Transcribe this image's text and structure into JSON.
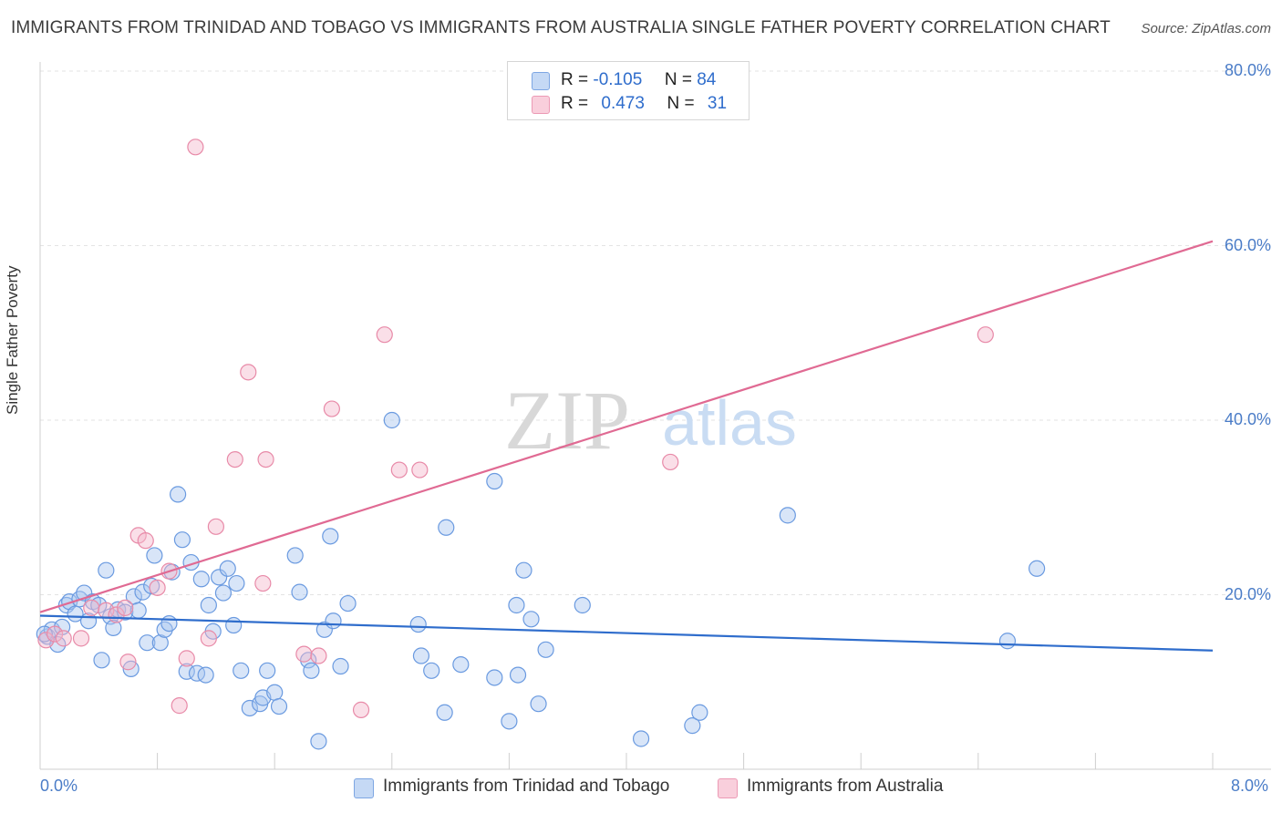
{
  "title": "IMMIGRANTS FROM TRINIDAD AND TOBAGO VS IMMIGRANTS FROM AUSTRALIA SINGLE FATHER POVERTY CORRELATION CHART",
  "source": "Source: ZipAtlas.com",
  "watermark": {
    "zip": "ZIP",
    "atlas": "atlas"
  },
  "legend": {
    "rows": [
      {
        "r_label": "R =",
        "r_value": "-0.105",
        "n_label": "N =",
        "n_value": "84",
        "color": "#a8c6f0"
      },
      {
        "r_label": "R =",
        "r_value": "0.473",
        "n_label": "N =",
        "n_value": "31",
        "color": "#f5b8cb"
      }
    ]
  },
  "chart_data": {
    "type": "scatter",
    "title": "IMMIGRANTS FROM TRINIDAD AND TOBAGO VS IMMIGRANTS FROM AUSTRALIA SINGLE FATHER POVERTY CORRELATION CHART",
    "xlabel": "",
    "ylabel": "Single Father Poverty",
    "xlim": [
      0,
      8
    ],
    "ylim": [
      0,
      80
    ],
    "x_tick_labels": [
      "0.0%",
      "8.0%"
    ],
    "y_tick_labels": [
      "20.0%",
      "40.0%",
      "60.0%",
      "80.0%"
    ],
    "y_ticks": [
      20,
      40,
      60,
      80
    ],
    "grid": true,
    "legend_position": "top-center",
    "series": [
      {
        "name": "Immigrants from Trinidad and Tobago",
        "color": "#a8c6f0",
        "stroke": "#6a9ae0",
        "trend": {
          "x0": 0,
          "y0": 17.6,
          "x1": 8,
          "y1": 13.6,
          "color": "#2f6dcc"
        },
        "points": [
          [
            0.05,
            15.2
          ],
          [
            0.08,
            16.0
          ],
          [
            0.12,
            14.3
          ],
          [
            0.15,
            16.3
          ],
          [
            0.18,
            18.8
          ],
          [
            0.2,
            19.2
          ],
          [
            0.24,
            17.8
          ],
          [
            0.27,
            19.5
          ],
          [
            0.3,
            20.2
          ],
          [
            0.33,
            17.0
          ],
          [
            0.36,
            19.2
          ],
          [
            0.4,
            18.8
          ],
          [
            0.42,
            12.5
          ],
          [
            0.45,
            22.8
          ],
          [
            0.48,
            17.5
          ],
          [
            0.5,
            16.2
          ],
          [
            0.53,
            18.3
          ],
          [
            0.58,
            18.0
          ],
          [
            0.62,
            11.5
          ],
          [
            0.64,
            19.8
          ],
          [
            0.67,
            18.2
          ],
          [
            0.7,
            20.3
          ],
          [
            0.73,
            14.5
          ],
          [
            0.76,
            21.0
          ],
          [
            0.78,
            24.5
          ],
          [
            0.82,
            14.5
          ],
          [
            0.85,
            16.0
          ],
          [
            0.88,
            16.7
          ],
          [
            0.9,
            22.6
          ],
          [
            0.94,
            31.5
          ],
          [
            0.97,
            26.3
          ],
          [
            1.0,
            11.2
          ],
          [
            1.03,
            23.7
          ],
          [
            1.07,
            11.0
          ],
          [
            1.1,
            21.8
          ],
          [
            1.13,
            10.8
          ],
          [
            1.15,
            18.8
          ],
          [
            1.18,
            15.8
          ],
          [
            1.22,
            22.0
          ],
          [
            1.25,
            20.2
          ],
          [
            1.28,
            23.0
          ],
          [
            1.32,
            16.5
          ],
          [
            1.34,
            21.3
          ],
          [
            1.37,
            11.3
          ],
          [
            1.43,
            7.0
          ],
          [
            1.5,
            7.5
          ],
          [
            1.52,
            8.2
          ],
          [
            1.55,
            11.3
          ],
          [
            1.6,
            8.8
          ],
          [
            1.63,
            7.2
          ],
          [
            1.74,
            24.5
          ],
          [
            1.77,
            20.3
          ],
          [
            1.83,
            12.5
          ],
          [
            1.85,
            11.3
          ],
          [
            1.9,
            3.2
          ],
          [
            1.94,
            16.0
          ],
          [
            1.98,
            26.7
          ],
          [
            2.0,
            17.0
          ],
          [
            2.05,
            11.8
          ],
          [
            2.1,
            19.0
          ],
          [
            2.4,
            40.0
          ],
          [
            2.58,
            16.6
          ],
          [
            2.6,
            13.0
          ],
          [
            2.67,
            11.3
          ],
          [
            2.76,
            6.5
          ],
          [
            2.77,
            27.7
          ],
          [
            2.87,
            12.0
          ],
          [
            3.1,
            33.0
          ],
          [
            3.1,
            10.5
          ],
          [
            3.2,
            5.5
          ],
          [
            3.25,
            18.8
          ],
          [
            3.26,
            10.8
          ],
          [
            3.3,
            22.8
          ],
          [
            3.35,
            17.2
          ],
          [
            3.4,
            7.5
          ],
          [
            3.45,
            13.7
          ],
          [
            3.7,
            18.8
          ],
          [
            4.1,
            3.5
          ],
          [
            4.45,
            5.0
          ],
          [
            4.5,
            6.5
          ],
          [
            5.1,
            29.1
          ],
          [
            6.6,
            14.7
          ],
          [
            6.8,
            23.0
          ],
          [
            0.03,
            15.5
          ]
        ]
      },
      {
        "name": "Immigrants from Australia",
        "color": "#f5b8cb",
        "stroke": "#e88aa8",
        "trend": {
          "x0": 0,
          "y0": 18.0,
          "x1": 8,
          "y1": 60.5,
          "color": "#e06a93"
        },
        "points": [
          [
            0.04,
            14.8
          ],
          [
            0.1,
            15.5
          ],
          [
            0.16,
            15.0
          ],
          [
            0.28,
            15.0
          ],
          [
            0.35,
            18.5
          ],
          [
            0.45,
            18.2
          ],
          [
            0.52,
            17.7
          ],
          [
            0.58,
            18.5
          ],
          [
            0.6,
            12.3
          ],
          [
            0.67,
            26.8
          ],
          [
            0.72,
            26.2
          ],
          [
            0.8,
            20.8
          ],
          [
            0.88,
            22.7
          ],
          [
            0.95,
            7.3
          ],
          [
            1.0,
            12.7
          ],
          [
            1.06,
            71.3
          ],
          [
            1.15,
            15.0
          ],
          [
            1.2,
            27.8
          ],
          [
            1.33,
            35.5
          ],
          [
            1.42,
            45.5
          ],
          [
            1.52,
            21.3
          ],
          [
            1.54,
            35.5
          ],
          [
            1.8,
            13.2
          ],
          [
            1.9,
            13.0
          ],
          [
            1.99,
            41.3
          ],
          [
            2.19,
            6.8
          ],
          [
            2.35,
            49.8
          ],
          [
            2.45,
            34.3
          ],
          [
            2.59,
            34.3
          ],
          [
            4.3,
            35.2
          ],
          [
            6.45,
            49.8
          ]
        ]
      }
    ]
  }
}
